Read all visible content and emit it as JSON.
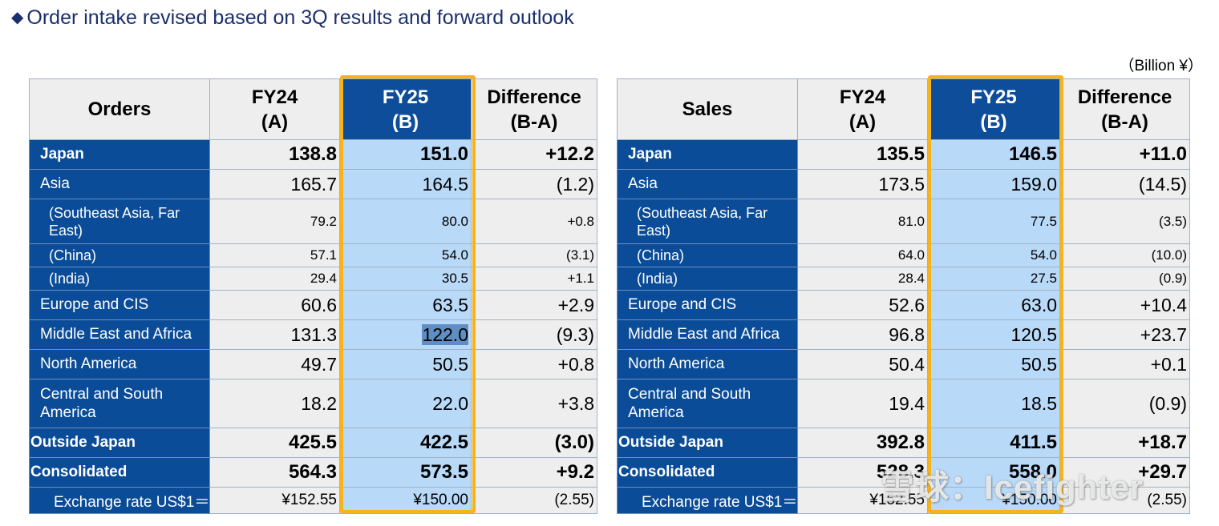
{
  "title": "Order intake revised based on 3Q results and forward outlook",
  "unit": "（Billion ¥）",
  "orders": {
    "header": {
      "label": "Orders",
      "fy24": [
        "FY24",
        "(A)"
      ],
      "fy25": [
        "FY25",
        "(B)"
      ],
      "diff": [
        "Difference",
        "(B-A)"
      ]
    },
    "rows": [
      {
        "label": "Japan",
        "fy24": "138.8",
        "fy25": "151.0",
        "diff": "+12.2"
      },
      {
        "label": "Asia",
        "fy24": "165.7",
        "fy25": "164.5",
        "diff": "(1.2)"
      },
      {
        "label": "(Southeast Asia, Far East)",
        "fy24": "79.2",
        "fy25": "80.0",
        "diff": "+0.8"
      },
      {
        "label": "(China)",
        "fy24": "57.1",
        "fy25": "54.0",
        "diff": "(3.1)"
      },
      {
        "label": "(India)",
        "fy24": "29.4",
        "fy25": "30.5",
        "diff": "+1.1"
      },
      {
        "label": "Europe and CIS",
        "fy24": "60.6",
        "fy25": "63.5",
        "diff": "+2.9"
      },
      {
        "label": "Middle East and Africa",
        "fy24": "131.3",
        "fy25": "122.0",
        "diff": "(9.3)"
      },
      {
        "label": "North America",
        "fy24": "49.7",
        "fy25": "50.5",
        "diff": "+0.8"
      },
      {
        "label": "Central and South America",
        "fy24": "18.2",
        "fy25": "22.0",
        "diff": "+3.8"
      },
      {
        "label": "Outside Japan",
        "fy24": "425.5",
        "fy25": "422.5",
        "diff": "(3.0)"
      },
      {
        "label": "Consolidated",
        "fy24": "564.3",
        "fy25": "573.5",
        "diff": "+9.2"
      },
      {
        "label": "Exchange rate US$1＝",
        "fy24": "¥152.55",
        "fy25": "¥150.00",
        "diff": "(2.55)"
      }
    ]
  },
  "sales": {
    "header": {
      "label": "Sales",
      "fy24": [
        "FY24",
        "(A)"
      ],
      "fy25": [
        "FY25",
        "(B)"
      ],
      "diff": [
        "Difference",
        "(B-A)"
      ]
    },
    "rows": [
      {
        "label": "Japan",
        "fy24": "135.5",
        "fy25": "146.5",
        "diff": "+11.0"
      },
      {
        "label": "Asia",
        "fy24": "173.5",
        "fy25": "159.0",
        "diff": "(14.5)"
      },
      {
        "label": "(Southeast Asia, Far East)",
        "fy24": "81.0",
        "fy25": "77.5",
        "diff": "(3.5)"
      },
      {
        "label": "(China)",
        "fy24": "64.0",
        "fy25": "54.0",
        "diff": "(10.0)"
      },
      {
        "label": "(India)",
        "fy24": "28.4",
        "fy25": "27.5",
        "diff": "(0.9)"
      },
      {
        "label": "Europe and CIS",
        "fy24": "52.6",
        "fy25": "63.0",
        "diff": "+10.4"
      },
      {
        "label": "Middle East and Africa",
        "fy24": "96.8",
        "fy25": "120.5",
        "diff": "+23.7"
      },
      {
        "label": "North America",
        "fy24": "50.4",
        "fy25": "50.5",
        "diff": "+0.1"
      },
      {
        "label": "Central and South America",
        "fy24": "19.4",
        "fy25": "18.5",
        "diff": "(0.9)"
      },
      {
        "label": "Outside Japan",
        "fy24": "392.8",
        "fy25": "411.5",
        "diff": "+18.7"
      },
      {
        "label": "Consolidated",
        "fy24": "528.3",
        "fy25": "558.0",
        "diff": "+29.7"
      },
      {
        "label": "Exchange rate US$1＝",
        "fy24": "¥152.55",
        "fy25": "¥150.00",
        "diff": "(2.55)"
      }
    ]
  },
  "watermark": "雪球：Icefighter",
  "colors": {
    "label_bg": "#0b4c98",
    "fy25_col": "#b8d9f8",
    "highlight_frame": "#f5b31c",
    "cell_bg": "#eeeeee"
  }
}
